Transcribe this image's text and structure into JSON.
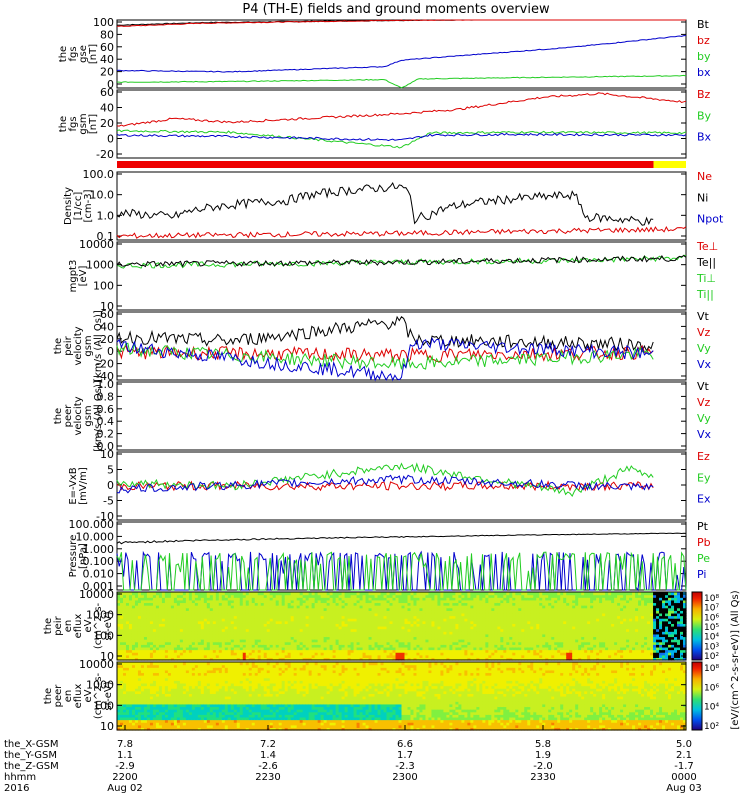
{
  "title": "P4 (TH-E) fields and ground moments overview",
  "colors": {
    "black": "#000000",
    "red": "#dd0000",
    "green": "#22cc22",
    "blue": "#0000cc",
    "bar_red": "#ee0000",
    "bar_yellow": "#ffff00"
  },
  "panels": [
    {
      "id": "fgs-gse",
      "ylabel": [
        "the",
        "fgs",
        "gse",
        "[nT]"
      ],
      "ticks": [
        "100",
        "80",
        "60",
        "40",
        "20",
        "0"
      ],
      "ylim": [
        -5,
        100
      ],
      "scale": "linear",
      "legend": [
        {
          "label": "Bt",
          "color": "black"
        },
        {
          "label": "bz",
          "color": "red"
        },
        {
          "label": "by",
          "color": "green"
        },
        {
          "label": "bx",
          "color": "blue"
        }
      ]
    },
    {
      "id": "fgs-gsm",
      "ylabel": [
        "the",
        "fgs",
        "gsm",
        "[nT]"
      ],
      "ticks": [
        "60",
        "40",
        "20",
        "0",
        "-20"
      ],
      "ylim": [
        -30,
        65
      ],
      "scale": "linear",
      "legend": [
        {
          "label": "Bz",
          "color": "red"
        },
        {
          "label": "By",
          "color": "green"
        },
        {
          "label": "Bx",
          "color": "blue"
        }
      ]
    },
    {
      "id": "mode-bar",
      "ylabel": [],
      "ticks": [],
      "legend": []
    },
    {
      "id": "density",
      "ylabel": [
        "Density",
        "[1/cc]",
        "[cm-3]"
      ],
      "ticks": [
        "100.0",
        "10.0",
        "1.0",
        "0.1"
      ],
      "ylim": [
        0.03,
        200
      ],
      "scale": "log",
      "legend": [
        {
          "label": "Ne",
          "color": "red"
        },
        {
          "label": "Ni",
          "color": "black"
        },
        {
          "label": "Npot",
          "color": "blue"
        }
      ]
    },
    {
      "id": "temperature",
      "ylabel": [
        "mgpt3",
        "[eV]"
      ],
      "ticks": [
        "10000",
        "1000",
        "100",
        "10"
      ],
      "ylim": [
        3,
        10000
      ],
      "scale": "log",
      "legend": [
        {
          "label": "Te⊥",
          "color": "red"
        },
        {
          "label": "Te||",
          "color": "black"
        },
        {
          "label": "Ti⊥",
          "color": "green"
        },
        {
          "label": "Ti||",
          "color": "green"
        }
      ]
    },
    {
      "id": "peir-velocity",
      "ylabel": [
        "the",
        "peir",
        "velocity",
        "gsm",
        "[km/s (All Qs)]"
      ],
      "ticks": [
        "60",
        "40",
        "20",
        "0",
        "-20",
        "-40"
      ],
      "ylim": [
        -45,
        65
      ],
      "scale": "linear",
      "legend": [
        {
          "label": "Vt",
          "color": "black"
        },
        {
          "label": "Vz",
          "color": "red"
        },
        {
          "label": "Vy",
          "color": "green"
        },
        {
          "label": "Vx",
          "color": "blue"
        }
      ]
    },
    {
      "id": "peer-velocity",
      "ylabel": [
        "the",
        "peer",
        "velocity",
        "gsm",
        "[km/s (All Qs)]"
      ],
      "ticks": [
        "1.0",
        "0.8",
        "0.6",
        "0.4",
        "0.2",
        "0.0"
      ],
      "ylim": [
        0,
        1
      ],
      "scale": "linear",
      "legend": [
        {
          "label": "Vt",
          "color": "black"
        },
        {
          "label": "Vz",
          "color": "red"
        },
        {
          "label": "Vy",
          "color": "green"
        },
        {
          "label": "Vx",
          "color": "blue"
        }
      ]
    },
    {
      "id": "efield",
      "ylabel": [
        "E=-VxB",
        "[mV/m]"
      ],
      "ticks": [
        "10",
        "5",
        "0",
        "-5",
        "-10"
      ],
      "ylim": [
        -10,
        10
      ],
      "scale": "linear",
      "legend": [
        {
          "label": "Ez",
          "color": "red"
        },
        {
          "label": "Ey",
          "color": "green"
        },
        {
          "label": "Ex",
          "color": "blue"
        }
      ]
    },
    {
      "id": "pressure",
      "ylabel": [
        "Pressure",
        "[nPa]"
      ],
      "ticks": [
        "100.000",
        "10.000",
        "1.000",
        "0.100",
        "0.010",
        "0.001"
      ],
      "ylim": [
        0.001,
        100
      ],
      "scale": "log",
      "legend": [
        {
          "label": "Pt",
          "color": "black"
        },
        {
          "label": "Pb",
          "color": "red"
        },
        {
          "label": "Pe",
          "color": "green"
        },
        {
          "label": "Pi",
          "color": "blue"
        }
      ]
    },
    {
      "id": "peir-eflux",
      "ylabel": [
        "the",
        "peir",
        "en",
        "eflux",
        "eV",
        "(cm^2-s-",
        "sr-eV)"
      ],
      "ticks": [
        "10000",
        "1000",
        "100",
        "10"
      ],
      "ylim": [
        5,
        20000
      ],
      "scale": "log",
      "legend": []
    },
    {
      "id": "peer-eflux",
      "ylabel": [
        "the",
        "peer",
        "en",
        "eflux",
        "eV",
        "(cm^2-s-",
        "sr-eV)"
      ],
      "ticks": [
        "10000",
        "1000",
        "100",
        "10"
      ],
      "ylim": [
        5,
        20000
      ],
      "scale": "log",
      "legend": []
    }
  ],
  "colorbars": [
    {
      "label": "[eV/(cm^2-s-sr-eV)] (All Qs)",
      "ticks": [
        "10⁸",
        "10⁷",
        "10⁶",
        "10⁵",
        "10⁴",
        "10³",
        "10²"
      ]
    },
    {
      "label": "[eV/(cm^2-s-sr-eV)] (All Qs)",
      "ticks": [
        "10⁸",
        "10⁶",
        "10⁴",
        "10²"
      ]
    }
  ],
  "xaxis": {
    "rows": [
      {
        "label": "the_X-GSM",
        "values": [
          "7.8",
          "7.2",
          "6.6",
          "5.8",
          "5.0"
        ]
      },
      {
        "label": "the_Y-GSM",
        "values": [
          "1.1",
          "1.4",
          "1.7",
          "1.9",
          "2.1"
        ]
      },
      {
        "label": "the_Z-GSM",
        "values": [
          "-2.9",
          "-2.6",
          "-2.3",
          "-2.0",
          "-1.7"
        ]
      },
      {
        "label": "hhmm",
        "values": [
          "2200",
          "2230",
          "2300",
          "2330",
          "0000"
        ]
      },
      {
        "label": "2016",
        "values": [
          "Aug 02",
          "",
          "",
          "",
          "Aug 03"
        ]
      }
    ]
  },
  "chart_data": {
    "type": "line",
    "x_times": [
      "2200",
      "2230",
      "2300",
      "2330",
      "0000"
    ],
    "series": [
      {
        "panel": "fgs-gse",
        "name": "Bt",
        "x": [
          0,
          0.15,
          0.45,
          0.55,
          0.8,
          1
        ],
        "values": [
          92,
          96,
          99,
          100,
          101,
          103
        ]
      },
      {
        "panel": "fgs-gse",
        "name": "bz",
        "x": [
          0,
          0.15,
          0.45,
          0.55,
          0.8,
          1
        ],
        "values": [
          90,
          95,
          99,
          100,
          101,
          103
        ]
      },
      {
        "panel": "fgs-gse",
        "name": "by",
        "x": [
          0,
          0.2,
          0.47,
          0.5,
          0.53,
          0.8,
          1
        ],
        "values": [
          4,
          5,
          8,
          -5,
          9,
          12,
          14
        ]
      },
      {
        "panel": "fgs-gse",
        "name": "bx",
        "x": [
          0,
          0.2,
          0.47,
          0.5,
          0.53,
          0.8,
          1
        ],
        "values": [
          22,
          20,
          28,
          38,
          40,
          58,
          76
        ]
      },
      {
        "panel": "fgs-gsm",
        "name": "Bz",
        "x": [
          0,
          0.1,
          0.2,
          0.4,
          0.5,
          0.6,
          0.75,
          0.85,
          1
        ],
        "values": [
          14,
          25,
          20,
          28,
          32,
          38,
          55,
          60,
          48
        ]
      },
      {
        "panel": "fgs-gsm",
        "name": "By",
        "x": [
          0,
          0.2,
          0.5,
          0.55,
          0.7,
          1
        ],
        "values": [
          8,
          6,
          -15,
          5,
          6,
          5
        ]
      },
      {
        "panel": "fgs-gsm",
        "name": "Bx",
        "x": [
          0,
          0.2,
          0.5,
          0.55,
          0.7,
          1
        ],
        "values": [
          2,
          0,
          -5,
          2,
          3,
          2
        ]
      },
      {
        "panel": "density",
        "name": "Ni",
        "x": [
          0,
          0.1,
          0.3,
          0.5,
          0.52,
          0.55,
          0.8,
          0.82,
          0.94,
          1
        ],
        "values": [
          1,
          0.6,
          5,
          30,
          0.4,
          0.8,
          10,
          0.6,
          0.3,
          0.05
        ]
      },
      {
        "panel": "density",
        "name": "Ne",
        "x": [
          0,
          0.5,
          1
        ],
        "values": [
          0.05,
          0.07,
          0.12
        ]
      },
      {
        "panel": "temperature",
        "name": "Ti||",
        "x": [
          0,
          0.2,
          0.5,
          0.8,
          1
        ],
        "values": [
          600,
          700,
          900,
          1100,
          1500
        ]
      },
      {
        "panel": "temperature",
        "name": "Te||",
        "x": [
          0,
          0.5,
          1
        ],
        "values": [
          700,
          900,
          1400
        ]
      },
      {
        "panel": "peir-velocity",
        "name": "Vt",
        "x": [
          0,
          0.2,
          0.5,
          0.52,
          0.8,
          1
        ],
        "values": [
          25,
          18,
          50,
          20,
          15,
          10
        ]
      },
      {
        "panel": "peir-velocity",
        "name": "Vz",
        "x": [
          0,
          0.5,
          1
        ],
        "values": [
          0,
          -5,
          0
        ]
      },
      {
        "panel": "peir-velocity",
        "name": "Vy",
        "x": [
          0,
          0.5,
          1
        ],
        "values": [
          5,
          -20,
          0
        ]
      },
      {
        "panel": "peir-velocity",
        "name": "Vx",
        "x": [
          0,
          0.5,
          0.52,
          1
        ],
        "values": [
          10,
          -40,
          15,
          -5
        ]
      },
      {
        "panel": "efield",
        "name": "Ez",
        "x": [
          0,
          1
        ],
        "values": [
          0,
          0
        ]
      },
      {
        "panel": "efield",
        "name": "Ey",
        "x": [
          0,
          0.2,
          0.5,
          0.8,
          0.9,
          1
        ],
        "values": [
          1,
          0,
          6,
          -2,
          5,
          0
        ]
      },
      {
        "panel": "efield",
        "name": "Ex",
        "x": [
          0,
          0.5,
          1
        ],
        "values": [
          -1,
          2,
          -1
        ]
      },
      {
        "panel": "pressure",
        "name": "Pt",
        "x": [
          0,
          0.5,
          1
        ],
        "values": [
          3,
          8,
          15
        ]
      },
      {
        "panel": "pressure",
        "name": "Pi",
        "x": [
          0,
          0.5,
          0.95,
          1
        ],
        "values": [
          0.03,
          0.035,
          0.03,
          0.004
        ]
      },
      {
        "panel": "pressure",
        "name": "Pe",
        "x": [
          0,
          0.5,
          0.95,
          1
        ],
        "values": [
          0.002,
          0.005,
          0.015,
          0.003
        ]
      }
    ]
  }
}
